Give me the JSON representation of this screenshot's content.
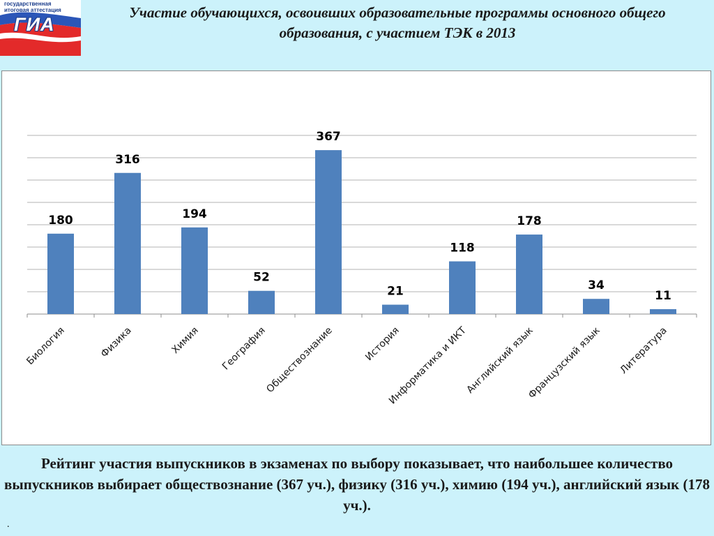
{
  "logo": {
    "line1": "государственная",
    "line2": "итоговая аттестация",
    "word": "ГИА"
  },
  "header": {
    "title": "Участие обучающихся, освоивших образовательные программы основного общего образования, с участием ТЭК в 2013"
  },
  "chart_data": {
    "type": "bar",
    "title": "",
    "xlabel": "",
    "ylabel": "",
    "categories": [
      "Биология",
      "Физика",
      "Химия",
      "География",
      "Обществознание",
      "История",
      "Информатика и ИКТ",
      "Английский язык",
      "Французский язык",
      "Литература"
    ],
    "values": [
      180,
      316,
      194,
      52,
      367,
      21,
      118,
      178,
      34,
      11
    ],
    "ylim": [
      0,
      400
    ],
    "gridlines": true,
    "tick_labels_visible": false,
    "data_labels": true,
    "bar_color": "#4f81bd"
  },
  "footer": {
    "summary": "Рейтинг участия выпускников в экзаменах по выбору показывает, что наибольшее количество выпускников выбирает обществознание (367 уч.), физику (316 уч.), химию (194 уч.), английский язык (178 уч.).",
    "dot": "."
  }
}
